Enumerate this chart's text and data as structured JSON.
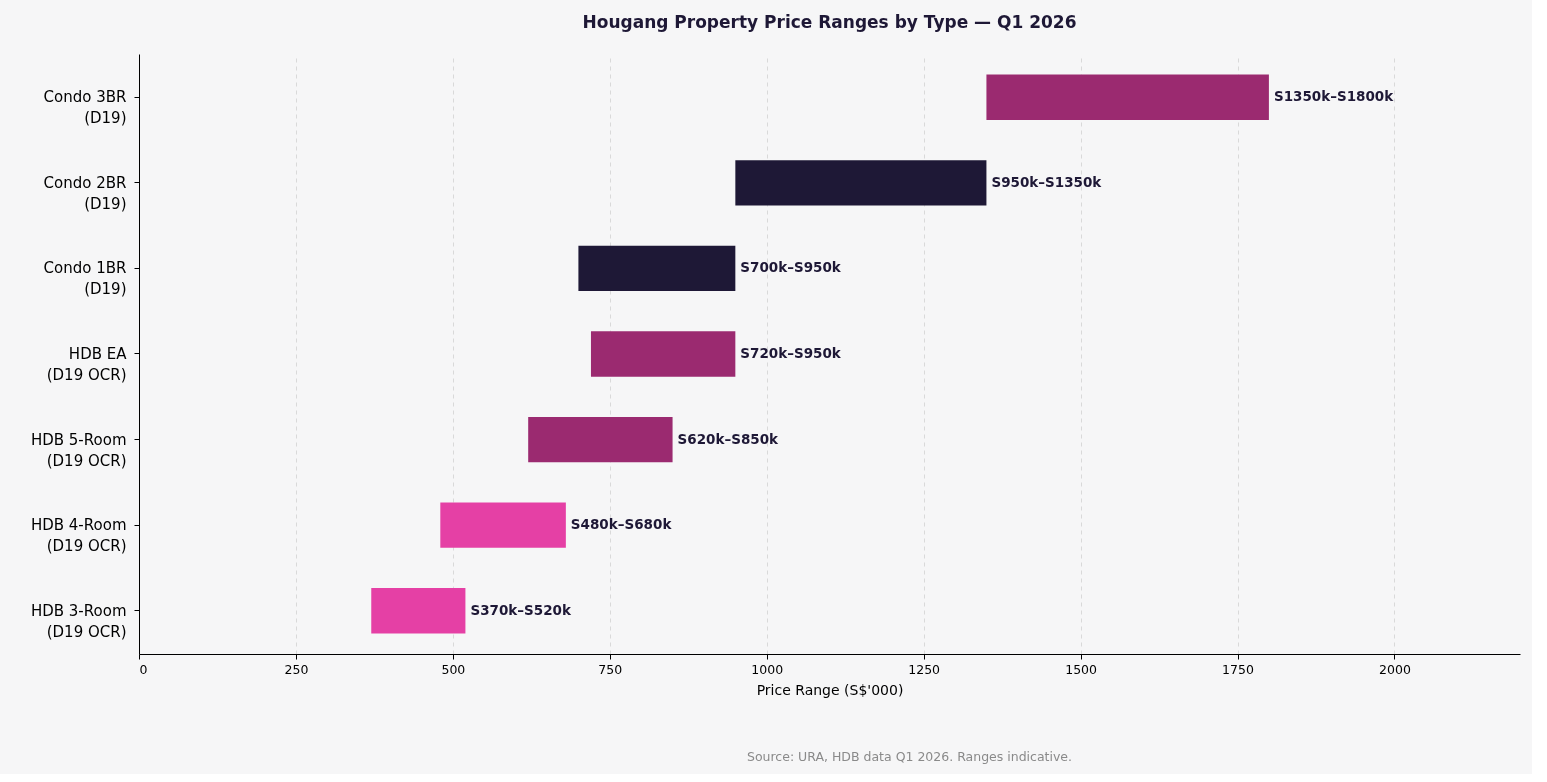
{
  "chart_data": {
    "type": "bar",
    "orientation": "horizontal",
    "title": "Hougang Property Price Ranges by Type — Q1 2026",
    "xlabel": "Price Range (S$'000)",
    "categories": [
      "Condo 3BR\n(D19)",
      "Condo 2BR\n(D19)",
      "Condo 1BR\n(D19)",
      "HDB EA\n(D19 OCR)",
      "HDB 5-Room\n(D19 OCR)",
      "HDB 4-Room\n(D19 OCR)",
      "HDB 3-Room\n(D19 OCR)"
    ],
    "base": [
      1350,
      950,
      700,
      720,
      620,
      480,
      370
    ],
    "values": [
      450,
      400,
      250,
      230,
      230,
      200,
      150
    ],
    "colors": [
      "#9b2a70",
      "#1e1836",
      "#1e1836",
      "#9b2a70",
      "#9b2a70",
      "#e540a5",
      "#e540a5"
    ],
    "value_labels": [
      "S1350k–S1800k",
      "S950k–S1350k",
      "S700k–S950k",
      "S720k–S950k",
      "S620k–S850k",
      "S480k–S680k",
      "S370k–S520k"
    ],
    "xlim": [
      0,
      2200
    ],
    "xticks": [
      0,
      250,
      500,
      750,
      1000,
      1250,
      1500,
      1750,
      2000
    ],
    "grid": "x",
    "annotations": [
      "Source: URA, HDB data Q1 2026. Ranges indicative."
    ]
  }
}
